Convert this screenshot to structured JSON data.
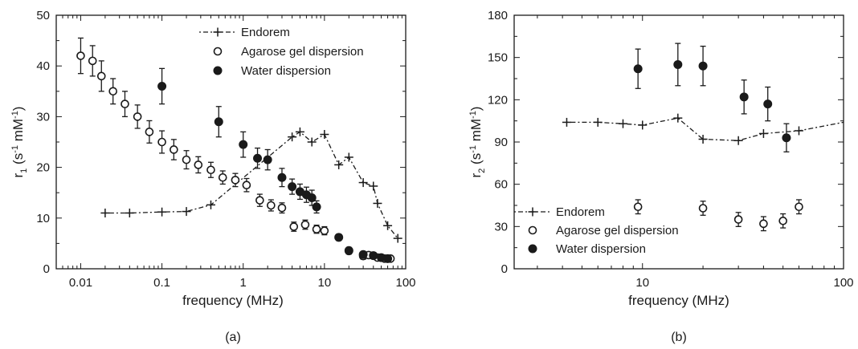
{
  "chart_data": [
    {
      "panel_label": "(a)",
      "type": "scatter",
      "xlabel": "frequency (MHz)",
      "ylabel_main": "r",
      "ylabel_sub": "1",
      "ylabel_rest": " (s",
      "ylabel_sup1": "-1",
      "ylabel_mid": " mM",
      "ylabel_sup2": "-1",
      "ylabel_end": ")",
      "xscale": "log",
      "xlim": [
        0.005,
        100
      ],
      "ylim": [
        0,
        50
      ],
      "xticks": [
        0.01,
        0.1,
        1,
        10,
        100
      ],
      "xtick_labels": [
        "0.01",
        "0.1",
        "1",
        "10",
        "100"
      ],
      "yticks": [
        0,
        10,
        20,
        30,
        40,
        50
      ],
      "ytick_labels": [
        "0",
        "10",
        "20",
        "30",
        "40",
        "50"
      ],
      "legend_position": "top-right",
      "series": [
        {
          "name": "Endorem",
          "marker": "plus",
          "line": "dash-dot",
          "x": [
            0.02,
            0.04,
            0.1,
            0.2,
            0.4,
            4,
            5,
            7,
            10,
            15,
            20,
            30,
            40,
            45,
            60,
            80
          ],
          "y": [
            11,
            11,
            11.2,
            11.3,
            12.6,
            26,
            27,
            25,
            26.5,
            20.5,
            22,
            17,
            16.3,
            12.9,
            8.5,
            6
          ],
          "yerr": []
        },
        {
          "name": "Agarose gel dispersion",
          "marker": "open-circle",
          "x": [
            0.01,
            0.014,
            0.018,
            0.025,
            0.035,
            0.05,
            0.07,
            0.1,
            0.14,
            0.2,
            0.28,
            0.4,
            0.56,
            0.8,
            1.1,
            1.6,
            2.2,
            3,
            4.2,
            5.8,
            8,
            10,
            20,
            30,
            35,
            45,
            55,
            65
          ],
          "y": [
            42,
            41,
            38,
            35,
            32.5,
            30,
            27,
            25,
            23.5,
            21.5,
            20.5,
            19.5,
            18,
            17.5,
            16.5,
            13.5,
            12.5,
            12,
            8.3,
            8.7,
            7.8,
            7.5,
            3.5,
            2.5,
            2.7,
            2.2,
            2,
            2
          ],
          "yerr": [
            3.5,
            3,
            3,
            2.5,
            2.5,
            2.3,
            2.2,
            2.2,
            2,
            1.8,
            1.6,
            1.5,
            1.3,
            1.3,
            1.3,
            1.2,
            1.1,
            1,
            0.9,
            0.9,
            0.8,
            0.8,
            0.6,
            0.6,
            0.6,
            0.5,
            0.5,
            0.5
          ]
        },
        {
          "name": "Water dispersion",
          "marker": "filled-circle",
          "x": [
            0.1,
            0.5,
            1,
            1.5,
            2,
            3,
            4,
            5,
            6,
            7,
            8,
            15,
            20,
            30,
            40,
            50,
            60
          ],
          "y": [
            36,
            29,
            24.5,
            21.8,
            21.5,
            18,
            16.2,
            15.2,
            14.6,
            14,
            12.2,
            6.2,
            3.6,
            2.8,
            2.6,
            2.2,
            2
          ],
          "yerr": [
            3.5,
            3,
            2.5,
            2,
            2,
            1.8,
            1.5,
            1.5,
            1.5,
            1.5,
            1.2,
            0.6,
            0.6,
            0.6,
            0.6,
            0.5,
            0.5
          ]
        }
      ]
    },
    {
      "panel_label": "(b)",
      "type": "scatter",
      "xlabel": "frequency (MHz)",
      "ylabel_main": "r",
      "ylabel_sub": "2",
      "ylabel_rest": " (s",
      "ylabel_sup1": "-1",
      "ylabel_mid": " mM",
      "ylabel_sup2": "-1",
      "ylabel_end": ")",
      "xscale": "log",
      "xlim": [
        2.3,
        100
      ],
      "ylim": [
        0,
        180
      ],
      "xticks": [
        10,
        100
      ],
      "xtick_labels": [
        "10",
        "100"
      ],
      "yticks": [
        0,
        30,
        60,
        90,
        120,
        150,
        180
      ],
      "ytick_labels": [
        "0",
        "30",
        "60",
        "90",
        "120",
        "150",
        "180"
      ],
      "legend_position": "bottom-left",
      "series": [
        {
          "name": "Endorem",
          "marker": "plus",
          "line": "dash-dot",
          "x": [
            4.2,
            6,
            8,
            10,
            15,
            20,
            30,
            40,
            60,
            100
          ],
          "y": [
            104,
            104,
            103,
            102,
            107,
            92,
            91,
            96,
            98,
            104
          ],
          "yerr": [],
          "line_ends_without_marker": true
        },
        {
          "name": "Agarose gel dispersion",
          "marker": "open-circle",
          "x": [
            9.5,
            20,
            30,
            40,
            50,
            60
          ],
          "y": [
            44,
            43,
            35,
            32,
            34,
            44
          ],
          "yerr": [
            5,
            5,
            5,
            5,
            5,
            5
          ]
        },
        {
          "name": "Water dispersion",
          "marker": "filled-circle",
          "x": [
            9.5,
            15,
            20,
            32,
            42,
            52
          ],
          "y": [
            142,
            145,
            144,
            122,
            117,
            93
          ],
          "yerr": [
            14,
            15,
            14,
            12,
            12,
            10
          ]
        }
      ]
    }
  ]
}
